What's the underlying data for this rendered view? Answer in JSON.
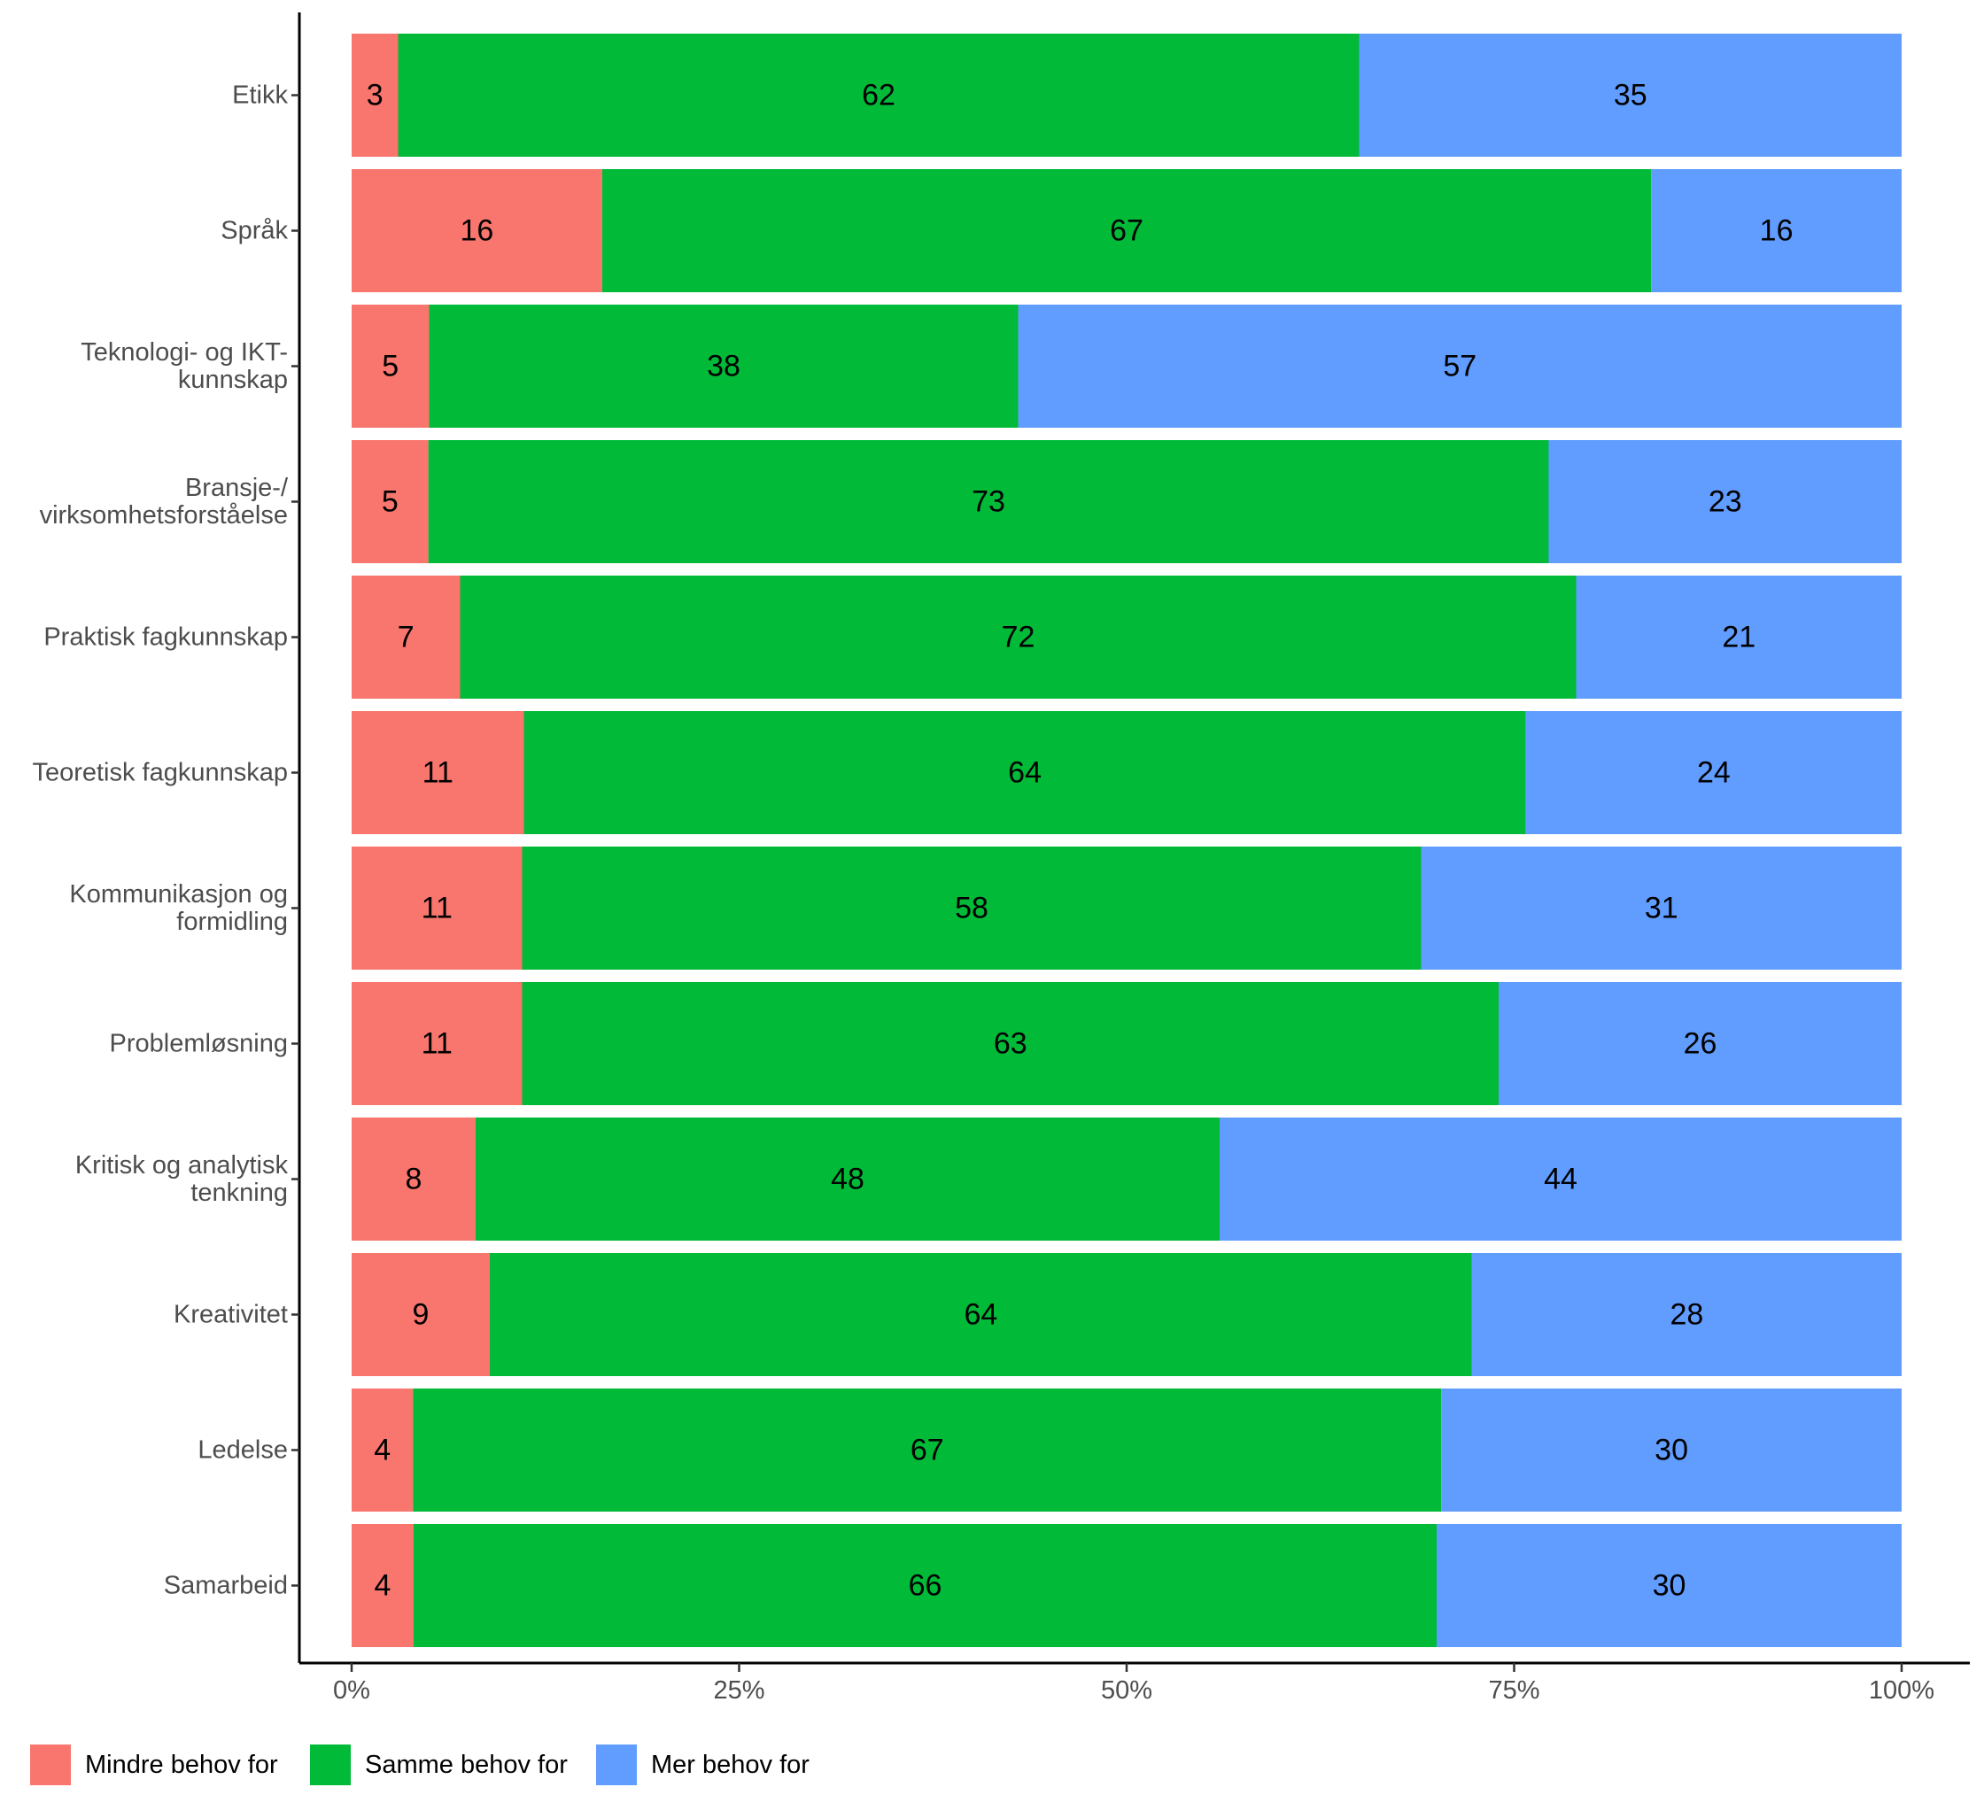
{
  "chart_data": {
    "type": "bar",
    "orientation": "horizontal",
    "stacked": "percent",
    "categories": [
      "Etikk",
      "Språk",
      "Teknologi- og IKT-\nkunnskap",
      "Bransje-/\nvirksomhetsforståelse",
      "Praktisk fagkunnskap",
      "Teoretisk fagkunnskap",
      "Kommunikasjon og\nformidling",
      "Problemløsning",
      "Kritisk og analytisk\ntenkning",
      "Kreativitet",
      "Ledelse",
      "Samarbeid"
    ],
    "series": [
      {
        "name": "Mindre behov for",
        "color": "#F8766D",
        "values": [
          3,
          16,
          5,
          5,
          7,
          11,
          11,
          11,
          8,
          9,
          4,
          4
        ]
      },
      {
        "name": "Samme behov for",
        "color": "#00BA38",
        "values": [
          62,
          67,
          38,
          73,
          72,
          64,
          58,
          63,
          48,
          64,
          67,
          66
        ]
      },
      {
        "name": "Mer behov for",
        "color": "#619CFF",
        "values": [
          35,
          16,
          57,
          23,
          21,
          24,
          31,
          26,
          44,
          28,
          30,
          30
        ]
      }
    ],
    "title": "",
    "xlabel": "",
    "ylabel": "",
    "xlim": [
      0,
      100
    ],
    "x_ticks": [
      "0%",
      "25%",
      "50%",
      "75%",
      "100%"
    ],
    "legend_position": "bottom-left",
    "grid": false
  }
}
